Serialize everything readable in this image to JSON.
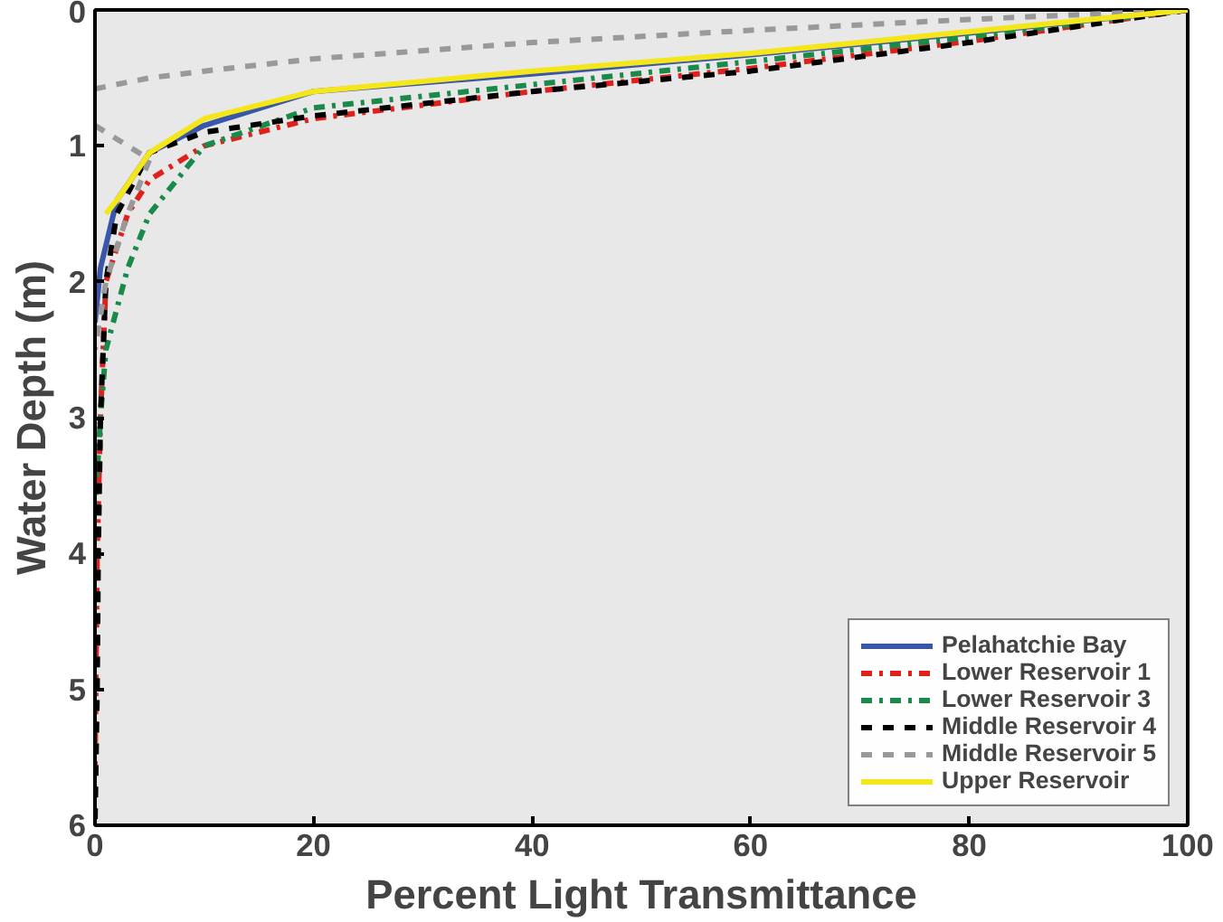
{
  "chart_data": {
    "type": "line",
    "xlabel": "Percent Light Transmittance",
    "ylabel": "Water Depth (m)",
    "xlim": [
      0,
      100
    ],
    "xticks": [
      0,
      20,
      40,
      60,
      80,
      100
    ],
    "ylim": [
      6,
      0
    ],
    "yticks": [
      0,
      1,
      2,
      3,
      4,
      5,
      6
    ],
    "grid": false,
    "legend": "bottom right",
    "marker": "none",
    "series": [
      {
        "name": "Pelahatchie Bay",
        "color": "#3a56a8",
        "line_style": "solid",
        "x": [
          100,
          80,
          60,
          40,
          20,
          10,
          5,
          2,
          0.5,
          0
        ],
        "values": [
          0,
          0.17,
          0.33,
          0.47,
          0.6,
          0.85,
          1.05,
          1.4,
          1.9,
          2.3
        ]
      },
      {
        "name": "Lower Reservoir 1",
        "color": "#e0201b",
        "line_style": "dashdot",
        "x": [
          100,
          80,
          60,
          40,
          20,
          10,
          5,
          3,
          1,
          0.5,
          0.2,
          0
        ],
        "values": [
          0,
          0.23,
          0.43,
          0.6,
          0.8,
          1.0,
          1.25,
          1.5,
          2,
          3,
          4,
          5.6
        ]
      },
      {
        "name": "Lower Reservoir 3",
        "color": "#1a8a4a",
        "line_style": "dashdot",
        "x": [
          100,
          80,
          60,
          40,
          20,
          10,
          5,
          3,
          1,
          0.5,
          0
        ],
        "values": [
          0,
          0.2,
          0.38,
          0.55,
          0.72,
          1.0,
          1.5,
          1.9,
          2.5,
          3,
          3.7
        ]
      },
      {
        "name": "Middle Reservoir 4",
        "color": "#000000",
        "line_style": "dashed",
        "x": [
          100,
          80,
          60,
          40,
          20,
          10,
          5,
          2,
          1,
          0.5,
          0.3,
          0.2,
          0
        ],
        "values": [
          0,
          0.24,
          0.45,
          0.6,
          0.78,
          0.9,
          1.05,
          1.5,
          2,
          3,
          4,
          5,
          6
        ]
      },
      {
        "name": "Middle Reservoir 5",
        "color": "#999999",
        "line_style": "dashed",
        "x": [
          100,
          80,
          60,
          40,
          20,
          10,
          5,
          0,
          null,
          0,
          5,
          3,
          1,
          0
        ],
        "values": [
          0,
          0.07,
          0.15,
          0.24,
          0.36,
          0.45,
          0.5,
          0.58,
          null,
          0.85,
          1.1,
          1.5,
          2,
          2.5
        ]
      },
      {
        "name": "Upper Reservoir",
        "color": "#f5e61a",
        "line_style": "solid",
        "x": [
          100,
          80,
          60,
          40,
          20,
          10,
          5,
          2,
          1
        ],
        "values": [
          0,
          0.16,
          0.32,
          0.45,
          0.6,
          0.8,
          1.05,
          1.4,
          1.5
        ]
      }
    ]
  }
}
